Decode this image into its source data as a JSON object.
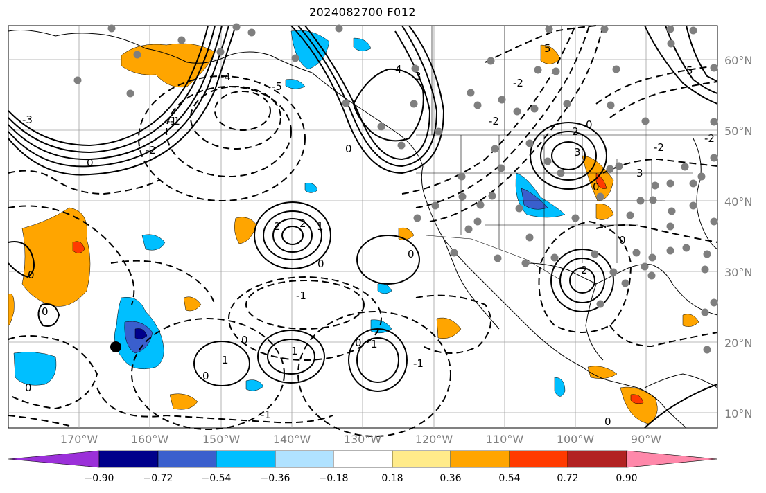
{
  "title": "2024082700 F012",
  "lat_labels": [
    "60°N",
    "50°N",
    "40°N",
    "30°N",
    "20°N",
    "10°N"
  ],
  "lon_labels": [
    "170°W",
    "160°W",
    "150°W",
    "140°W",
    "130°W",
    "120°W",
    "110°W",
    "100°W",
    "90°W"
  ],
  "colorbar": {
    "ticks": [
      "−0.90",
      "−0.72",
      "−0.54",
      "−0.36",
      "−0.18",
      "0.18",
      "0.36",
      "0.54",
      "0.72",
      "0.90"
    ],
    "colors": [
      "#9b30d9",
      "#00008b",
      "#3a5fcd",
      "#00bfff",
      "#b0e2ff",
      "#ffffff",
      "#ffeb8a",
      "#ffa500",
      "#ff3a00",
      "#b22222",
      "#ff88aa"
    ]
  },
  "contour_labels": [
    "0",
    "1",
    "2",
    "3",
    "4",
    "5",
    "-1",
    "-2",
    "-3",
    "-4",
    "-5"
  ],
  "colors": {
    "land_border": "#000000",
    "grid": "#a0a0a0",
    "station_dot": "#7f7f7f",
    "marker": "#000000"
  }
}
